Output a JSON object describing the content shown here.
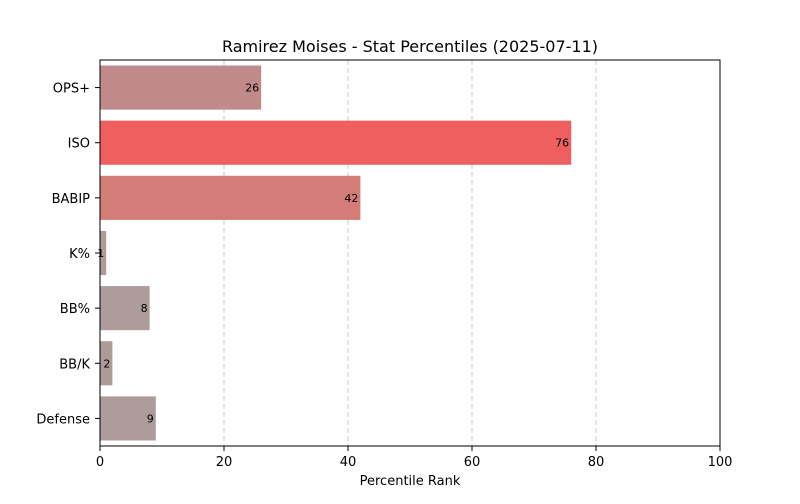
{
  "chart_data": {
    "type": "bar",
    "orientation": "horizontal",
    "title": "Ramirez Moises - Stat Percentiles (2025-07-11)",
    "xlabel": "Percentile Rank",
    "ylabel": "",
    "xlim": [
      0,
      100
    ],
    "xticks": [
      0,
      20,
      40,
      60,
      80,
      100
    ],
    "grid": "x-dashed",
    "categories": [
      "OPS+",
      "ISO",
      "BABIP",
      "K%",
      "BB%",
      "BB/K",
      "Defense"
    ],
    "values": [
      26,
      76,
      42,
      1,
      8,
      2,
      9
    ],
    "colors": [
      "#c08a8a",
      "#ef5f5f",
      "#d47c78",
      "#b09a9a",
      "#ae9b9b",
      "#af9a9a",
      "#ae9b9b"
    ],
    "data_labels": [
      "26",
      "76",
      "42",
      "1",
      "8",
      "2",
      "9"
    ]
  }
}
